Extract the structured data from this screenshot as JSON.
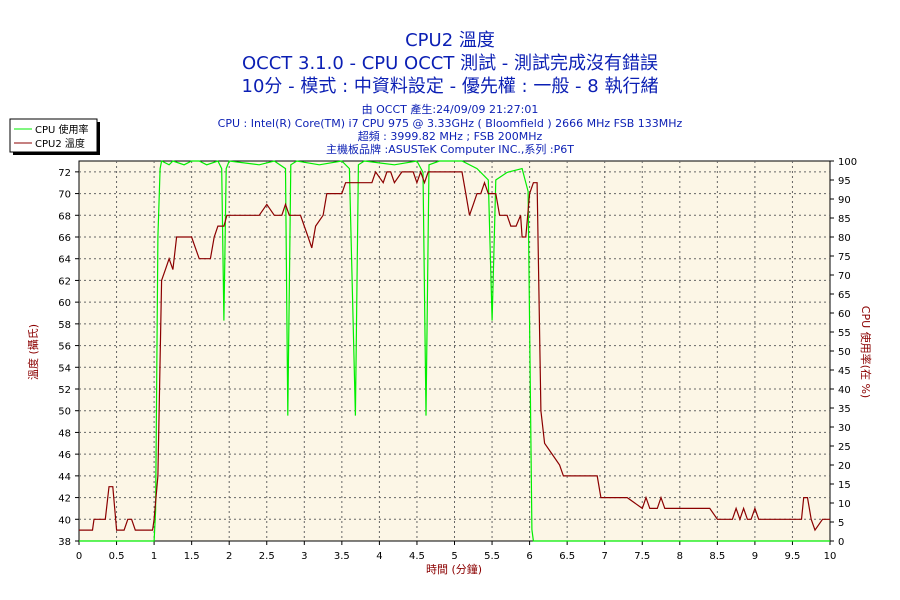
{
  "titles": {
    "line1": "CPU2 溫度",
    "line2": "OCCT 3.1.0 - CPU OCCT 測試 - 測試完成沒有錯誤",
    "line3": "10分 - 模式 : 中資料設定 - 優先權 : 一般 - 8 執行緒"
  },
  "info": {
    "line1": "由 OCCT 產生:24/09/09 21:27:01",
    "line2": "CPU : Intel(R) Core(TM) i7 CPU 975 @ 3.33GHz ( Bloomfield ) 2666 MHz FSB 133MHz",
    "line3": "超頻 : 3999.82 MHz ; FSB 200MHz",
    "line4": "主機板品牌 :ASUSTeK Computer INC.,系列 :P6T"
  },
  "colors": {
    "plot_bg": "#fcf6e6",
    "temp_line": "#8b0000",
    "usage_line": "#00ee00",
    "title": "#0b1fb4",
    "axis_title": "#8b0000"
  },
  "chart_data": {
    "type": "line",
    "xlabel": "時間 (分鐘)",
    "ylabel": "溫度 (攝氏)",
    "y2label": "CPU 使用率(在 %)",
    "xlim": [
      0,
      10
    ],
    "ylim": [
      38,
      73
    ],
    "y2lim": [
      0,
      100
    ],
    "x_ticks": [
      "0",
      "0.5",
      "1",
      "1.5",
      "2",
      "2.5",
      "3",
      "3.5",
      "4",
      "4.5",
      "5",
      "5.5",
      "6",
      "6.5",
      "7",
      "7.5",
      "8",
      "8.5",
      "9",
      "9.5",
      "10"
    ],
    "y_ticks": [
      "38",
      "40",
      "42",
      "44",
      "46",
      "48",
      "50",
      "52",
      "54",
      "56",
      "58",
      "60",
      "62",
      "64",
      "66",
      "68",
      "70",
      "72"
    ],
    "y2_ticks": [
      "0",
      "5",
      "10",
      "15",
      "20",
      "25",
      "30",
      "35",
      "40",
      "45",
      "50",
      "55",
      "60",
      "65",
      "70",
      "75",
      "80",
      "85",
      "90",
      "95",
      "100"
    ],
    "grid": true,
    "legend_position": "top-left",
    "series": [
      {
        "name": "CPU 使用率",
        "axis": "right",
        "points": [
          [
            0,
            0
          ],
          [
            1.0,
            0
          ],
          [
            1.02,
            8
          ],
          [
            1.05,
            80
          ],
          [
            1.08,
            98
          ],
          [
            1.1,
            100
          ],
          [
            1.2,
            99
          ],
          [
            1.25,
            100
          ],
          [
            1.4,
            99
          ],
          [
            1.5,
            100
          ],
          [
            1.6,
            100
          ],
          [
            1.7,
            99
          ],
          [
            1.85,
            100
          ],
          [
            1.9,
            98
          ],
          [
            1.93,
            58
          ],
          [
            1.96,
            98
          ],
          [
            2.0,
            100
          ],
          [
            2.4,
            99
          ],
          [
            2.6,
            100
          ],
          [
            2.75,
            98
          ],
          [
            2.78,
            33
          ],
          [
            2.82,
            99
          ],
          [
            2.9,
            100
          ],
          [
            3.2,
            99
          ],
          [
            3.5,
            100
          ],
          [
            3.6,
            98
          ],
          [
            3.68,
            33
          ],
          [
            3.72,
            99
          ],
          [
            3.8,
            100
          ],
          [
            4.2,
            99
          ],
          [
            4.5,
            100
          ],
          [
            4.58,
            97
          ],
          [
            4.62,
            33
          ],
          [
            4.66,
            99
          ],
          [
            4.8,
            100
          ],
          [
            5.1,
            100
          ],
          [
            5.3,
            98
          ],
          [
            5.45,
            95
          ],
          [
            5.5,
            58
          ],
          [
            5.55,
            95
          ],
          [
            5.7,
            97
          ],
          [
            5.9,
            98
          ],
          [
            5.98,
            92
          ],
          [
            6.03,
            3
          ],
          [
            6.05,
            0
          ],
          [
            10,
            0
          ]
        ]
      },
      {
        "name": "CPU2 溫度",
        "axis": "left",
        "points": [
          [
            0,
            39
          ],
          [
            0.18,
            39
          ],
          [
            0.2,
            40
          ],
          [
            0.35,
            40
          ],
          [
            0.4,
            43
          ],
          [
            0.45,
            43
          ],
          [
            0.5,
            39
          ],
          [
            0.6,
            39
          ],
          [
            0.65,
            40
          ],
          [
            0.7,
            40
          ],
          [
            0.75,
            39
          ],
          [
            0.98,
            39
          ],
          [
            1.0,
            40
          ],
          [
            1.05,
            44
          ],
          [
            1.1,
            62
          ],
          [
            1.15,
            63
          ],
          [
            1.2,
            64
          ],
          [
            1.25,
            63
          ],
          [
            1.3,
            66
          ],
          [
            1.5,
            66
          ],
          [
            1.55,
            65
          ],
          [
            1.6,
            64
          ],
          [
            1.75,
            64
          ],
          [
            1.8,
            66
          ],
          [
            1.85,
            67
          ],
          [
            1.93,
            67
          ],
          [
            1.97,
            68
          ],
          [
            2.4,
            68
          ],
          [
            2.5,
            69
          ],
          [
            2.6,
            68
          ],
          [
            2.7,
            68
          ],
          [
            2.75,
            69
          ],
          [
            2.8,
            68
          ],
          [
            2.95,
            68
          ],
          [
            3.05,
            66
          ],
          [
            3.1,
            65
          ],
          [
            3.15,
            67
          ],
          [
            3.25,
            68
          ],
          [
            3.3,
            70
          ],
          [
            3.5,
            70
          ],
          [
            3.55,
            71
          ],
          [
            3.8,
            71
          ],
          [
            3.9,
            71
          ],
          [
            3.95,
            72
          ],
          [
            4.05,
            71
          ],
          [
            4.1,
            72
          ],
          [
            4.15,
            72
          ],
          [
            4.2,
            71
          ],
          [
            4.3,
            72
          ],
          [
            4.45,
            72
          ],
          [
            4.5,
            71
          ],
          [
            4.55,
            72
          ],
          [
            4.6,
            71
          ],
          [
            4.65,
            72
          ],
          [
            5.1,
            72
          ],
          [
            5.15,
            70
          ],
          [
            5.2,
            68
          ],
          [
            5.25,
            69
          ],
          [
            5.3,
            70
          ],
          [
            5.35,
            70
          ],
          [
            5.4,
            71
          ],
          [
            5.45,
            70
          ],
          [
            5.55,
            70
          ],
          [
            5.6,
            68
          ],
          [
            5.7,
            68
          ],
          [
            5.75,
            67
          ],
          [
            5.82,
            67
          ],
          [
            5.88,
            68
          ],
          [
            5.9,
            66
          ],
          [
            5.95,
            66
          ],
          [
            6.0,
            70
          ],
          [
            6.05,
            71
          ],
          [
            6.1,
            71
          ],
          [
            6.15,
            50
          ],
          [
            6.2,
            47
          ],
          [
            6.3,
            46
          ],
          [
            6.4,
            45
          ],
          [
            6.45,
            44
          ],
          [
            6.9,
            44
          ],
          [
            6.95,
            42
          ],
          [
            7.0,
            42
          ],
          [
            7.2,
            42
          ],
          [
            7.3,
            42
          ],
          [
            7.5,
            41
          ],
          [
            7.55,
            42
          ],
          [
            7.6,
            41
          ],
          [
            7.7,
            41
          ],
          [
            7.75,
            42
          ],
          [
            7.8,
            41
          ],
          [
            7.95,
            41
          ],
          [
            8.0,
            41
          ],
          [
            8.4,
            41
          ],
          [
            8.5,
            40
          ],
          [
            8.7,
            40
          ],
          [
            8.75,
            41
          ],
          [
            8.8,
            40
          ],
          [
            8.85,
            41
          ],
          [
            8.9,
            40
          ],
          [
            8.95,
            40
          ],
          [
            9.0,
            41
          ],
          [
            9.05,
            40
          ],
          [
            9.5,
            40
          ],
          [
            9.55,
            40
          ],
          [
            9.62,
            40
          ],
          [
            9.65,
            42
          ],
          [
            9.7,
            42
          ],
          [
            9.75,
            40
          ],
          [
            9.8,
            39
          ],
          [
            9.9,
            40
          ],
          [
            10,
            40
          ]
        ]
      }
    ]
  }
}
